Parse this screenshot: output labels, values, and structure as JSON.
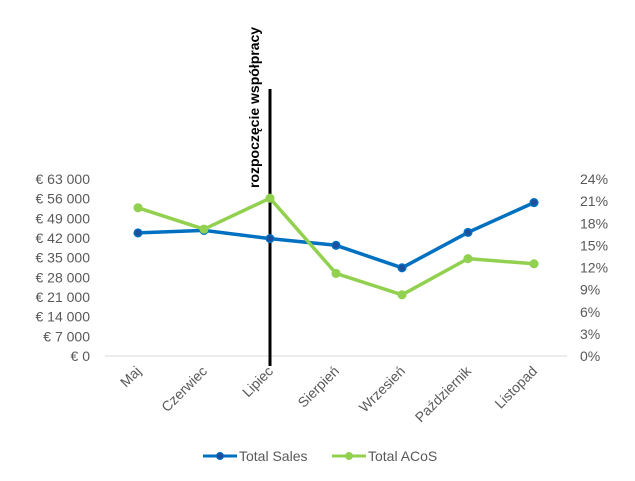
{
  "chart_data": {
    "type": "line",
    "categories": [
      "Maj",
      "Czerwiec",
      "Lipiec",
      "Sierpień",
      "Wrzesień",
      "Październik",
      "Listopad"
    ],
    "series": [
      {
        "name": "Total Sales",
        "axis": "left",
        "color": "#0070C0",
        "values": [
          43800,
          44700,
          41800,
          39400,
          31400,
          44000,
          54600
        ]
      },
      {
        "name": "Total ACoS",
        "axis": "right",
        "color": "#92D050",
        "values": [
          0.201,
          0.172,
          0.214,
          0.112,
          0.083,
          0.132,
          0.125
        ]
      }
    ],
    "y_left": {
      "ticks": [
        "€ 0",
        "€ 7 000",
        "€ 14 000",
        "€ 21 000",
        "€ 28 000",
        "€ 35 000",
        "€ 42 000",
        "€ 49 000",
        "€ 56 000",
        "€ 63 000"
      ],
      "ylim": [
        0,
        63000
      ]
    },
    "y_right": {
      "ticks": [
        "0%",
        "3%",
        "6%",
        "9%",
        "12%",
        "15%",
        "18%",
        "21%",
        "24%"
      ],
      "ylim": [
        0,
        0.24
      ]
    },
    "annotation": {
      "text": "rozpoczęcie współpracy",
      "category": "Lipiec"
    },
    "grid": false,
    "legend_position": "bottom"
  }
}
